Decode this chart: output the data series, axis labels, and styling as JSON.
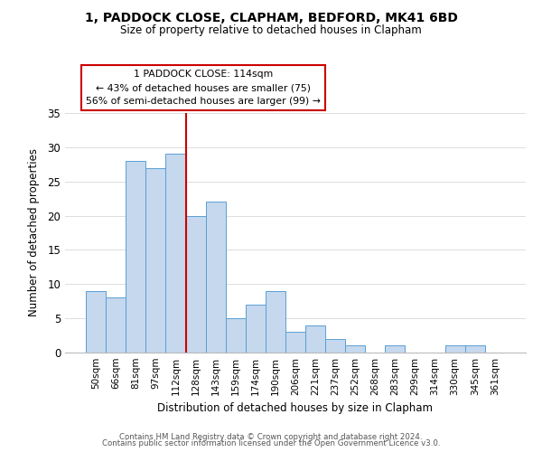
{
  "title": "1, PADDOCK CLOSE, CLAPHAM, BEDFORD, MK41 6BD",
  "subtitle": "Size of property relative to detached houses in Clapham",
  "xlabel": "Distribution of detached houses by size in Clapham",
  "ylabel": "Number of detached properties",
  "bar_labels": [
    "50sqm",
    "66sqm",
    "81sqm",
    "97sqm",
    "112sqm",
    "128sqm",
    "143sqm",
    "159sqm",
    "174sqm",
    "190sqm",
    "206sqm",
    "221sqm",
    "237sqm",
    "252sqm",
    "268sqm",
    "283sqm",
    "299sqm",
    "314sqm",
    "330sqm",
    "345sqm",
    "361sqm"
  ],
  "bar_values": [
    9,
    8,
    28,
    27,
    29,
    20,
    22,
    5,
    7,
    9,
    3,
    4,
    2,
    1,
    0,
    1,
    0,
    0,
    1,
    1,
    0
  ],
  "bar_color": "#c5d8ed",
  "bar_edge_color": "#5a9fd4",
  "vline_x_idx": 4,
  "vline_color": "#cc0000",
  "annotation_title": "1 PADDOCK CLOSE: 114sqm",
  "annotation_line1": "← 43% of detached houses are smaller (75)",
  "annotation_line2": "56% of semi-detached houses are larger (99) →",
  "annotation_box_color": "#ffffff",
  "annotation_box_edge": "#cc0000",
  "ylim": [
    0,
    35
  ],
  "yticks": [
    0,
    5,
    10,
    15,
    20,
    25,
    30,
    35
  ],
  "footer1": "Contains HM Land Registry data © Crown copyright and database right 2024.",
  "footer2": "Contains public sector information licensed under the Open Government Licence v3.0.",
  "background_color": "#ffffff",
  "grid_color": "#dddddd"
}
